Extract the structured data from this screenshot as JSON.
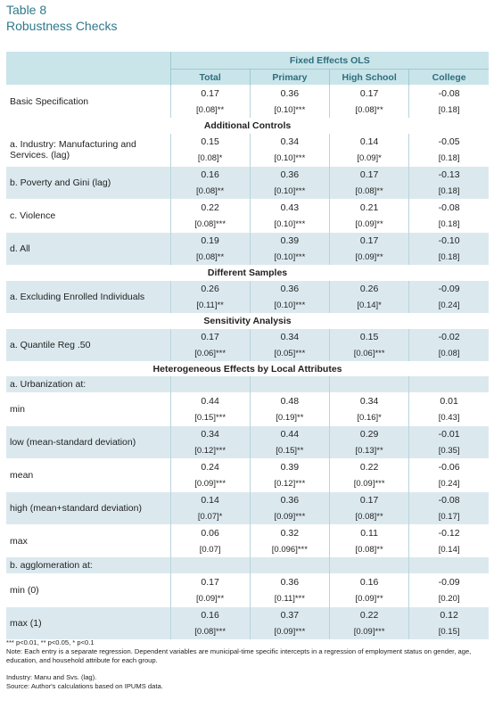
{
  "title": {
    "line1": "Table 8",
    "line2": "Robustness Checks"
  },
  "header": {
    "group": "Fixed Effects OLS",
    "columns": [
      "Total",
      "Primary",
      "High School",
      "College"
    ]
  },
  "rows": [
    {
      "type": "data",
      "label": "Basic Specification",
      "shade": false,
      "coef": [
        "0.17",
        "0.36",
        "0.17",
        "-0.08"
      ],
      "se": [
        "[0.08]**",
        "[0.10]***",
        "[0.08]**",
        "[0.18]"
      ]
    },
    {
      "type": "section",
      "label": "Additional Controls"
    },
    {
      "type": "data",
      "label": "a. Industry: Manufacturing and Services. (lag)",
      "shade": false,
      "coef": [
        "0.15",
        "0.34",
        "0.14",
        "-0.05"
      ],
      "se": [
        "[0.08]*",
        "[0.10]***",
        "[0.09]*",
        "[0.18]"
      ]
    },
    {
      "type": "data",
      "label": "b. Poverty and Gini (lag)",
      "shade": true,
      "coef": [
        "0.16",
        "0.36",
        "0.17",
        "-0.13"
      ],
      "se": [
        "[0.08]**",
        "[0.10]***",
        "[0.08]**",
        "[0.18]"
      ]
    },
    {
      "type": "data",
      "label": "c. Violence",
      "shade": false,
      "coef": [
        "0.22",
        "0.43",
        "0.21",
        "-0.08"
      ],
      "se": [
        "[0.08]***",
        "[0.10]***",
        "[0.09]**",
        "[0.18]"
      ]
    },
    {
      "type": "data",
      "label": "d. All",
      "shade": true,
      "coef": [
        "0.19",
        "0.39",
        "0.17",
        "-0.10"
      ],
      "se": [
        "[0.08]**",
        "[0.10]***",
        "[0.09]**",
        "[0.18]"
      ]
    },
    {
      "type": "section",
      "label": "Different Samples"
    },
    {
      "type": "data",
      "label": "a. Excluding Enrolled Individuals",
      "shade": true,
      "coef": [
        "0.26",
        "0.36",
        "0.26",
        "-0.09"
      ],
      "se": [
        "[0.11]**",
        "[0.10]***",
        "[0.14]*",
        "[0.24]"
      ]
    },
    {
      "type": "section",
      "label": "Sensitivity Analysis"
    },
    {
      "type": "data",
      "label": "a. Quantile Reg .50",
      "shade": true,
      "coef": [
        "0.17",
        "0.34",
        "0.15",
        "-0.02"
      ],
      "se": [
        "[0.06]***",
        "[0.05]***",
        "[0.06]***",
        "[0.08]"
      ]
    },
    {
      "type": "section",
      "label": "Heterogeneous Effects by Local Attributes"
    },
    {
      "type": "subsection",
      "label": "a. Urbanization at:"
    },
    {
      "type": "data",
      "label": "min",
      "shade": false,
      "coef": [
        "0.44",
        "0.48",
        "0.34",
        "0.01"
      ],
      "se": [
        "[0.15]***",
        "[0.19]**",
        "[0.16]*",
        "[0.43]"
      ]
    },
    {
      "type": "data",
      "label": "low (mean-standard deviation)",
      "shade": true,
      "coef": [
        "0.34",
        "0.44",
        "0.29",
        "-0.01"
      ],
      "se": [
        "[0.12]***",
        "[0.15]**",
        "[0.13]**",
        "[0.35]"
      ]
    },
    {
      "type": "data",
      "label": "mean",
      "shade": false,
      "coef": [
        "0.24",
        "0.39",
        "0.22",
        "-0.06"
      ],
      "se": [
        "[0.09]***",
        "[0.12]***",
        "[0.09]***",
        "[0.24]"
      ]
    },
    {
      "type": "data",
      "label": "high (mean+standard deviation)",
      "shade": true,
      "coef": [
        "0.14",
        "0.36",
        "0.17",
        "-0.08"
      ],
      "se": [
        "[0.07]*",
        "[0.09]***",
        "[0.08]**",
        "[0.17]"
      ]
    },
    {
      "type": "data",
      "label": "max",
      "shade": false,
      "coef": [
        "0.06",
        "0.32",
        "0.11",
        "-0.12"
      ],
      "se": [
        "[0.07]",
        "[0.096]***",
        "[0.08]**",
        "[0.14]"
      ]
    },
    {
      "type": "subsection",
      "label": "b. agglomeration at:"
    },
    {
      "type": "data",
      "label": "min (0)",
      "shade": false,
      "coef": [
        "0.17",
        "0.36",
        "0.16",
        "-0.09"
      ],
      "se": [
        "[0.09]**",
        "[0.11]***",
        "[0.09]**",
        "[0.20]"
      ]
    },
    {
      "type": "data",
      "label": "max (1)",
      "shade": true,
      "coef": [
        "0.16",
        "0.37",
        "0.22",
        "0.12"
      ],
      "se": [
        "[0.08]***",
        "[0.09]***",
        "[0.09]***",
        "[0.15]"
      ]
    }
  ],
  "notes": {
    "significance": "*** p<0.01, ** p<0.05, * p<0.1",
    "note": "Note: Each entry is a separate regression. Dependent variables are municipal-time specific intercepts in a regression of employment status on gender, age, education, and household attribute for each group.",
    "industry": "Industry: Manu and Svs. (lag).",
    "source": "Source: Author's calculations based on IPUMS data."
  }
}
